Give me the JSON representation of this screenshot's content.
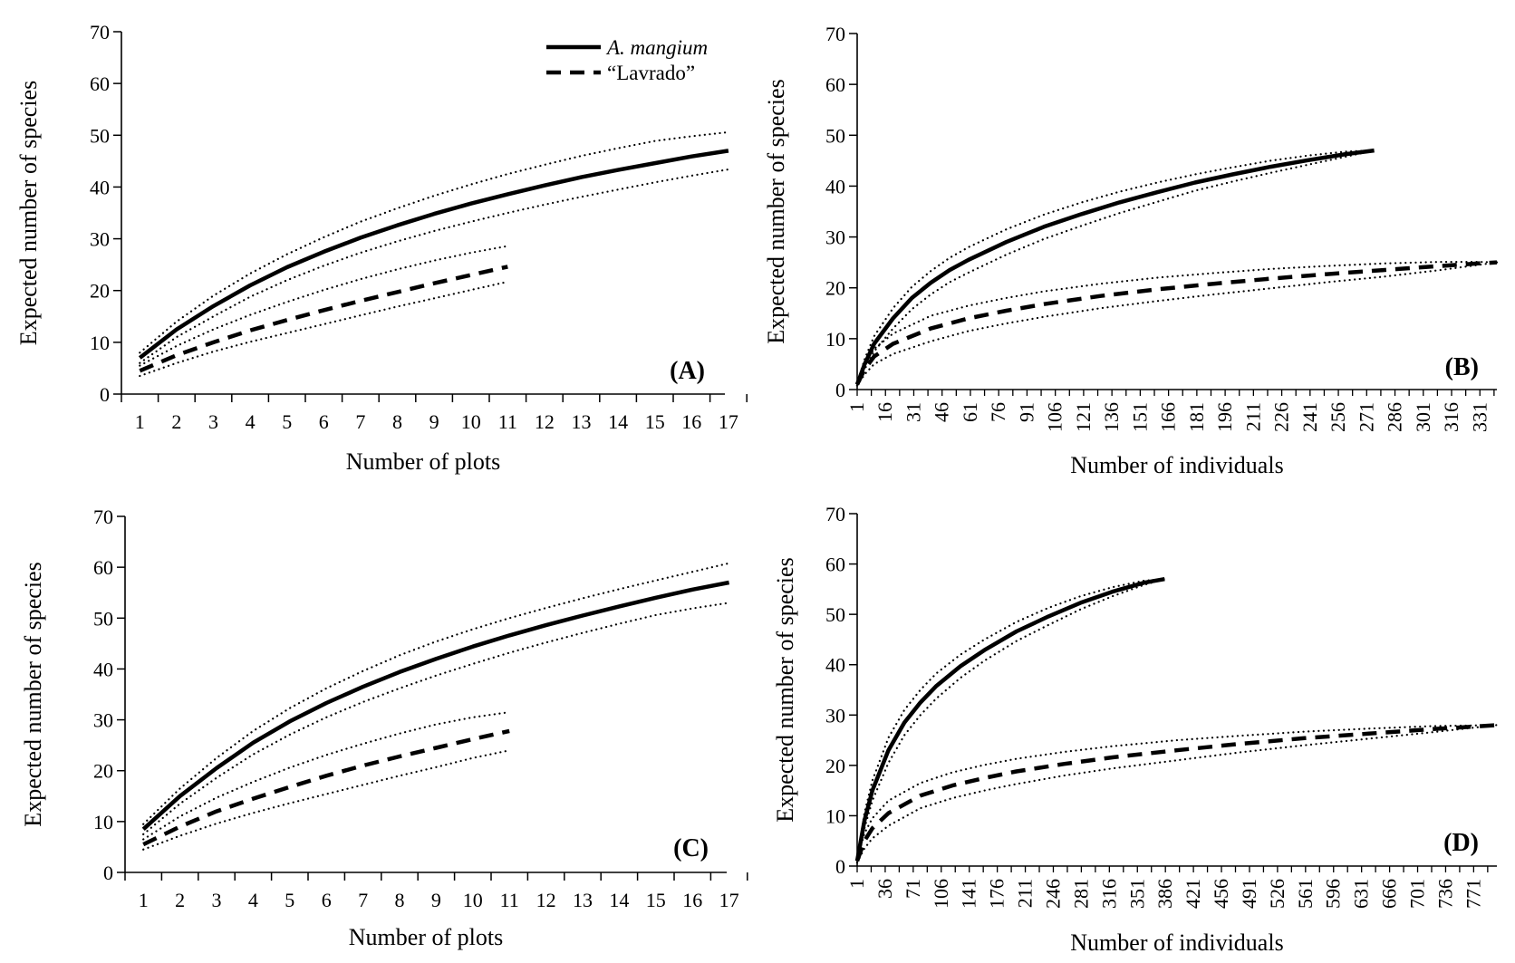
{
  "legend": {
    "entries": [
      {
        "label": "A. mangium",
        "style": "solid",
        "italic": true
      },
      {
        "label": "“Lavrado”",
        "style": "dashed",
        "italic": false
      }
    ]
  },
  "colors": {
    "line": "#000000",
    "background": "#ffffff"
  },
  "chart_data": [
    {
      "type": "line",
      "panel_label": "(A)",
      "xlabel": "Number of plots",
      "ylabel": "Expected number of species",
      "xlim": [
        0.5,
        17.5
      ],
      "ylim": [
        0,
        70
      ],
      "yticks": [
        0,
        10,
        20,
        30,
        40,
        50,
        60,
        70
      ],
      "xticks": [
        1,
        2,
        3,
        4,
        5,
        6,
        7,
        8,
        9,
        10,
        11,
        12,
        13,
        14,
        15,
        16,
        17
      ],
      "grid": false,
      "legend_position": "top-right",
      "series": [
        {
          "name": "A. mangium",
          "style": "solid",
          "x": [
            1,
            2,
            3,
            4,
            5,
            6,
            7,
            8,
            9,
            10,
            11,
            12,
            13,
            14,
            15,
            16,
            17
          ],
          "y": [
            7,
            12.5,
            17,
            21,
            24.5,
            27.5,
            30.2,
            32.6,
            34.8,
            36.8,
            38.6,
            40.3,
            41.9,
            43.3,
            44.6,
            45.9,
            47
          ]
        },
        {
          "name": "A. mangium upper 95% CI",
          "style": "dotted",
          "x": [
            1,
            2,
            3,
            4,
            5,
            6,
            7,
            8,
            9,
            10,
            11,
            12,
            13,
            14,
            15,
            16,
            17
          ],
          "y": [
            8,
            14,
            19,
            23.3,
            27,
            30.3,
            33.3,
            35.9,
            38.3,
            40.5,
            42.5,
            44.3,
            46,
            47.5,
            48.9,
            49.8,
            50.6
          ]
        },
        {
          "name": "A. mangium lower 95% CI",
          "style": "dotted",
          "x": [
            1,
            2,
            3,
            4,
            5,
            6,
            7,
            8,
            9,
            10,
            11,
            12,
            13,
            14,
            15,
            16,
            17
          ],
          "y": [
            6,
            11,
            15,
            18.8,
            22,
            24.8,
            27.3,
            29.5,
            31.5,
            33.3,
            35,
            36.6,
            38.1,
            39.5,
            40.9,
            42.2,
            43.4
          ]
        },
        {
          "name": "“Lavrado”",
          "style": "dashed",
          "x": [
            1,
            2,
            3,
            4,
            5,
            6,
            7,
            8,
            9,
            10,
            11
          ],
          "y": [
            4.5,
            7.5,
            10,
            12.3,
            14.3,
            16.2,
            18,
            19.7,
            21.4,
            23,
            24.6
          ]
        },
        {
          "name": "“Lavrado” upper 95% CI",
          "style": "dotted",
          "x": [
            1,
            2,
            3,
            4,
            5,
            6,
            7,
            8,
            9,
            10,
            11
          ],
          "y": [
            5.5,
            9.3,
            12.5,
            15.3,
            17.8,
            20.1,
            22.2,
            24.1,
            25.8,
            27.3,
            28.6
          ]
        },
        {
          "name": "“Lavrado” lower 95% CI",
          "style": "dotted",
          "x": [
            1,
            2,
            3,
            4,
            5,
            6,
            7,
            8,
            9,
            10,
            11
          ],
          "y": [
            3.5,
            6,
            8.2,
            10.1,
            11.8,
            13.5,
            15.2,
            16.9,
            18.5,
            20.1,
            21.7
          ]
        }
      ]
    },
    {
      "type": "line",
      "panel_label": "(B)",
      "xlabel": "Number of individuals",
      "ylabel": "Expected number of species",
      "xlim": [
        1,
        340
      ],
      "ylim": [
        0,
        70
      ],
      "yticks": [
        0,
        10,
        20,
        30,
        40,
        50,
        60,
        70
      ],
      "xticks": [
        1,
        16,
        31,
        46,
        61,
        76,
        91,
        106,
        121,
        136,
        151,
        166,
        181,
        196,
        211,
        226,
        241,
        256,
        271,
        286,
        301,
        316,
        331
      ],
      "grid": false,
      "series": [
        {
          "name": "A. mangium",
          "style": "solid",
          "x": [
            1,
            5,
            10,
            20,
            30,
            40,
            50,
            60,
            80,
            100,
            120,
            140,
            160,
            180,
            200,
            220,
            240,
            260,
            275
          ],
          "y": [
            1,
            5,
            9,
            14,
            18,
            21,
            23.5,
            25.5,
            29,
            32,
            34.5,
            36.8,
            38.8,
            40.7,
            42.3,
            43.8,
            45.1,
            46.3,
            47
          ]
        },
        {
          "name": "A. mangium upper 95% CI",
          "style": "dotted",
          "x": [
            1,
            5,
            10,
            20,
            30,
            40,
            50,
            60,
            80,
            100,
            120,
            140,
            160,
            180,
            200,
            220,
            240,
            260,
            275
          ],
          "y": [
            1.2,
            6,
            10.5,
            16,
            20.2,
            23.3,
            25.9,
            28,
            31.5,
            34.4,
            36.8,
            38.9,
            40.7,
            42.3,
            43.7,
            45,
            46,
            46.8,
            47
          ]
        },
        {
          "name": "A. mangium lower 95% CI",
          "style": "dotted",
          "x": [
            1,
            5,
            10,
            20,
            30,
            40,
            50,
            60,
            80,
            100,
            120,
            140,
            160,
            180,
            200,
            220,
            240,
            260,
            275
          ],
          "y": [
            0.8,
            4,
            7.5,
            12,
            15.8,
            18.7,
            21.1,
            23,
            26.5,
            29.6,
            32.2,
            34.7,
            36.9,
            39.1,
            40.9,
            42.6,
            44.2,
            45.8,
            47
          ]
        },
        {
          "name": "“Lavrado”",
          "style": "dashed",
          "x": [
            1,
            5,
            10,
            20,
            40,
            60,
            80,
            100,
            130,
            160,
            190,
            220,
            250,
            280,
            310,
            330,
            340
          ],
          "y": [
            1,
            4,
            6.5,
            9,
            12,
            14,
            15.5,
            16.8,
            18.4,
            19.7,
            20.8,
            21.8,
            22.7,
            23.5,
            24.3,
            24.8,
            25
          ]
        },
        {
          "name": "“Lavrado” upper 95% CI",
          "style": "dotted",
          "x": [
            1,
            5,
            10,
            20,
            40,
            60,
            80,
            100,
            130,
            160,
            190,
            220,
            250,
            280,
            310,
            330,
            340
          ],
          "y": [
            1.2,
            5,
            8,
            11,
            14.5,
            16.5,
            18,
            19.3,
            20.8,
            22,
            22.9,
            23.7,
            24.3,
            24.8,
            25.1,
            25.1,
            25
          ]
        },
        {
          "name": "“Lavrado” lower 95% CI",
          "style": "dotted",
          "x": [
            1,
            5,
            10,
            20,
            40,
            60,
            80,
            100,
            130,
            160,
            190,
            220,
            250,
            280,
            310,
            330,
            340
          ],
          "y": [
            0.8,
            3,
            5,
            7,
            9.5,
            11.5,
            13,
            14.3,
            16,
            17.4,
            18.7,
            19.9,
            21.1,
            22.2,
            23.5,
            24.5,
            25
          ]
        }
      ]
    },
    {
      "type": "line",
      "panel_label": "(C)",
      "xlabel": "Number of plots",
      "ylabel": "Expected number of species",
      "xlim": [
        0.5,
        17.5
      ],
      "ylim": [
        0,
        70
      ],
      "yticks": [
        0,
        10,
        20,
        30,
        40,
        50,
        60,
        70
      ],
      "xticks": [
        1,
        2,
        3,
        4,
        5,
        6,
        7,
        8,
        9,
        10,
        11,
        12,
        13,
        14,
        15,
        16,
        17
      ],
      "grid": false,
      "series": [
        {
          "name": "A. mangium",
          "style": "solid",
          "x": [
            1,
            2,
            3,
            4,
            5,
            6,
            7,
            8,
            9,
            10,
            11,
            12,
            13,
            14,
            15,
            16,
            17
          ],
          "y": [
            8.5,
            15,
            20.5,
            25.5,
            29.7,
            33.3,
            36.5,
            39.4,
            42,
            44.4,
            46.6,
            48.6,
            50.5,
            52.3,
            54,
            55.6,
            57
          ]
        },
        {
          "name": "A. mangium upper 95% CI",
          "style": "dotted",
          "x": [
            1,
            2,
            3,
            4,
            5,
            6,
            7,
            8,
            9,
            10,
            11,
            12,
            13,
            14,
            15,
            16,
            17
          ],
          "y": [
            9.5,
            16.5,
            22.5,
            27.8,
            32.3,
            36.2,
            39.6,
            42.7,
            45.4,
            47.8,
            50,
            52,
            53.9,
            55.7,
            57.4,
            59.1,
            60.8
          ]
        },
        {
          "name": "A. mangium lower 95% CI",
          "style": "dotted",
          "x": [
            1,
            2,
            3,
            4,
            5,
            6,
            7,
            8,
            9,
            10,
            11,
            12,
            13,
            14,
            15,
            16,
            17
          ],
          "y": [
            7.5,
            13.5,
            18.6,
            23.2,
            27.1,
            30.5,
            33.5,
            36.2,
            38.7,
            41,
            43.2,
            45.2,
            47.1,
            48.9,
            50.6,
            51.9,
            53
          ]
        },
        {
          "name": "“Lavrado”",
          "style": "dashed",
          "x": [
            1,
            2,
            3,
            4,
            5,
            6,
            7,
            8,
            9,
            10,
            11
          ],
          "y": [
            5.5,
            9,
            12,
            14.5,
            16.8,
            19,
            21,
            22.8,
            24.5,
            26.2,
            27.8
          ]
        },
        {
          "name": "“Lavrado” upper 95% CI",
          "style": "dotted",
          "x": [
            1,
            2,
            3,
            4,
            5,
            6,
            7,
            8,
            9,
            10,
            11
          ],
          "y": [
            6.5,
            11,
            14.7,
            17.8,
            20.6,
            23.1,
            25.3,
            27.3,
            29.1,
            30.5,
            31.5
          ]
        },
        {
          "name": "“Lavrado” lower 95% CI",
          "style": "dotted",
          "x": [
            1,
            2,
            3,
            4,
            5,
            6,
            7,
            8,
            9,
            10,
            11
          ],
          "y": [
            4.5,
            7.2,
            9.6,
            11.7,
            13.6,
            15.4,
            17.2,
            19,
            20.7,
            22.5,
            24
          ]
        }
      ]
    },
    {
      "type": "line",
      "panel_label": "(D)",
      "xlabel": "Number of individuals",
      "ylabel": "Expected number of species",
      "xlim": [
        1,
        800
      ],
      "ylim": [
        0,
        70
      ],
      "yticks": [
        0,
        10,
        20,
        30,
        40,
        50,
        60,
        70
      ],
      "xticks": [
        1,
        36,
        71,
        106,
        141,
        176,
        211,
        246,
        281,
        316,
        351,
        386,
        421,
        456,
        491,
        526,
        561,
        596,
        631,
        666,
        701,
        736,
        771
      ],
      "grid": false,
      "series": [
        {
          "name": "A. mangium",
          "style": "solid",
          "x": [
            1,
            10,
            20,
            40,
            60,
            80,
            100,
            130,
            160,
            200,
            240,
            280,
            320,
            360,
            385
          ],
          "y": [
            1,
            9,
            15,
            23,
            28.5,
            32.5,
            35.8,
            39.7,
            42.9,
            46.6,
            49.6,
            52.3,
            54.5,
            56.3,
            57
          ]
        },
        {
          "name": "A. mangium upper 95% CI",
          "style": "dotted",
          "x": [
            1,
            10,
            20,
            40,
            60,
            80,
            100,
            130,
            160,
            200,
            240,
            280,
            320,
            360,
            385
          ],
          "y": [
            1.3,
            10.5,
            17,
            25.5,
            31,
            35,
            38.3,
            42,
            45,
            48.5,
            51.3,
            53.6,
            55.4,
            56.7,
            57
          ]
        },
        {
          "name": "A. mangium lower 95% CI",
          "style": "dotted",
          "x": [
            1,
            10,
            20,
            40,
            60,
            80,
            100,
            130,
            160,
            200,
            240,
            280,
            320,
            360,
            385
          ],
          "y": [
            0.7,
            7.5,
            13,
            20.5,
            26,
            30,
            33.3,
            37.4,
            40.8,
            44.7,
            47.9,
            51,
            53.6,
            55.9,
            57
          ]
        },
        {
          "name": "“Lavrado”",
          "style": "dashed",
          "x": [
            1,
            10,
            20,
            40,
            80,
            120,
            160,
            200,
            260,
            320,
            400,
            480,
            560,
            640,
            720,
            800
          ],
          "y": [
            1,
            5,
            7.5,
            10.5,
            14,
            16,
            17.5,
            18.8,
            20.3,
            21.6,
            23,
            24.3,
            25.4,
            26.3,
            27.2,
            28
          ]
        },
        {
          "name": "“Lavrado” upper 95% CI",
          "style": "dotted",
          "x": [
            1,
            10,
            20,
            40,
            80,
            120,
            160,
            200,
            260,
            320,
            400,
            480,
            560,
            640,
            720,
            800
          ],
          "y": [
            1.3,
            6.5,
            9.5,
            13,
            16.5,
            18.6,
            20.1,
            21.3,
            22.7,
            23.8,
            25,
            25.9,
            26.7,
            27.3,
            27.8,
            28
          ]
        },
        {
          "name": "“Lavrado” lower 95% CI",
          "style": "dotted",
          "x": [
            1,
            10,
            20,
            40,
            80,
            120,
            160,
            200,
            260,
            320,
            400,
            480,
            560,
            640,
            720,
            800
          ],
          "y": [
            0.7,
            3.5,
            5.5,
            8,
            11.5,
            13.5,
            15,
            16.3,
            18,
            19.4,
            21,
            22.6,
            24,
            25.3,
            26.6,
            28
          ]
        }
      ]
    }
  ]
}
